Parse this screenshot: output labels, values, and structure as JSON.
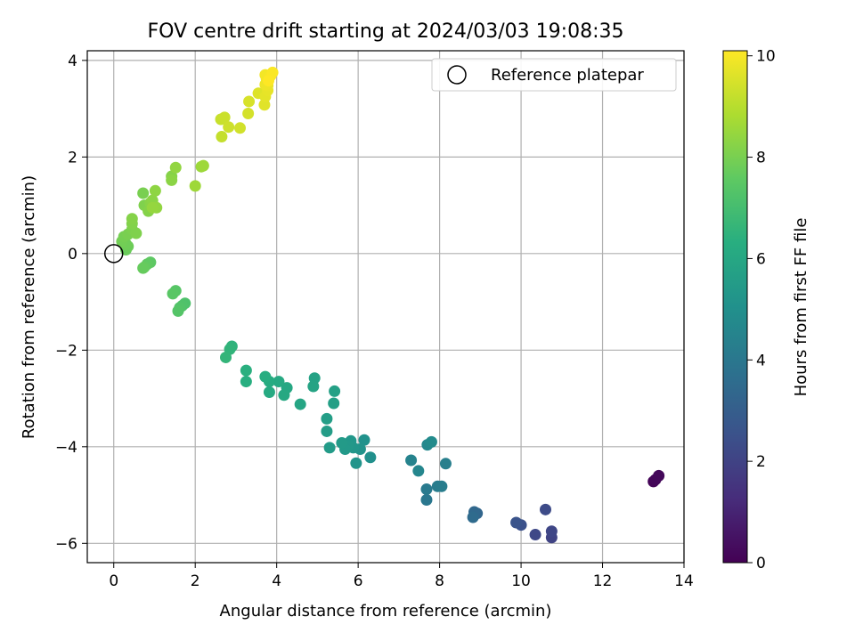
{
  "chart_data": {
    "type": "scatter",
    "title": "FOV centre drift starting at 2024/03/03 19:08:35",
    "xlabel": "Angular distance from reference (arcmin)",
    "ylabel": "Rotation from reference (arcmin)",
    "xlim": [
      -0.65,
      14.0
    ],
    "ylim": [
      -6.4,
      4.2
    ],
    "xticks": [
      0,
      2,
      4,
      6,
      8,
      10,
      12,
      14
    ],
    "yticks": [
      -6,
      -4,
      -2,
      0,
      2,
      4
    ],
    "grid": true,
    "legend": {
      "placement": "top-right",
      "entries": [
        "Reference platepar"
      ]
    },
    "reference_point": {
      "x": 0,
      "y": 0
    },
    "colorbar": {
      "label": "Hours from first FF file",
      "range": [
        0,
        10.1
      ],
      "ticks": [
        0,
        2,
        4,
        6,
        8,
        10
      ],
      "colormap": "viridis"
    },
    "colormap_stops": [
      "#440154",
      "#472d7b",
      "#3b528b",
      "#2c728e",
      "#21918c",
      "#28ae80",
      "#5ec962",
      "#addc30",
      "#fde725"
    ],
    "points": [
      {
        "x": 13.25,
        "y": -4.72,
        "c": 0.1
      },
      {
        "x": 13.3,
        "y": -4.68,
        "c": 0.15
      },
      {
        "x": 13.38,
        "y": -4.6,
        "c": 0.2
      },
      {
        "x": 10.75,
        "y": -5.88,
        "c": 2.0
      },
      {
        "x": 10.75,
        "y": -5.75,
        "c": 2.1
      },
      {
        "x": 10.35,
        "y": -5.82,
        "c": 2.2
      },
      {
        "x": 10.6,
        "y": -5.3,
        "c": 2.3
      },
      {
        "x": 10.0,
        "y": -5.62,
        "c": 2.5
      },
      {
        "x": 9.88,
        "y": -5.57,
        "c": 2.6
      },
      {
        "x": 8.92,
        "y": -5.38,
        "c": 3.3
      },
      {
        "x": 8.85,
        "y": -5.35,
        "c": 3.4
      },
      {
        "x": 8.82,
        "y": -5.46,
        "c": 3.5
      },
      {
        "x": 7.68,
        "y": -5.1,
        "c": 4.0
      },
      {
        "x": 7.68,
        "y": -4.88,
        "c": 4.1
      },
      {
        "x": 7.95,
        "y": -4.82,
        "c": 4.2
      },
      {
        "x": 8.05,
        "y": -4.82,
        "c": 4.25
      },
      {
        "x": 8.15,
        "y": -4.35,
        "c": 4.3
      },
      {
        "x": 7.3,
        "y": -4.28,
        "c": 4.5
      },
      {
        "x": 7.48,
        "y": -4.5,
        "c": 4.6
      },
      {
        "x": 7.7,
        "y": -3.96,
        "c": 4.7
      },
      {
        "x": 7.8,
        "y": -3.9,
        "c": 4.8
      },
      {
        "x": 6.3,
        "y": -4.22,
        "c": 5.0
      },
      {
        "x": 6.15,
        "y": -3.86,
        "c": 5.1
      },
      {
        "x": 6.05,
        "y": -4.05,
        "c": 5.15
      },
      {
        "x": 5.95,
        "y": -4.34,
        "c": 5.2
      },
      {
        "x": 5.88,
        "y": -4.02,
        "c": 5.25
      },
      {
        "x": 5.82,
        "y": -3.88,
        "c": 5.3
      },
      {
        "x": 5.75,
        "y": -3.98,
        "c": 5.35
      },
      {
        "x": 5.68,
        "y": -4.05,
        "c": 5.4
      },
      {
        "x": 5.6,
        "y": -3.92,
        "c": 5.45
      },
      {
        "x": 5.3,
        "y": -4.02,
        "c": 5.5
      },
      {
        "x": 5.23,
        "y": -3.68,
        "c": 5.55
      },
      {
        "x": 5.23,
        "y": -3.42,
        "c": 5.6
      },
      {
        "x": 5.4,
        "y": -3.1,
        "c": 5.65
      },
      {
        "x": 5.42,
        "y": -2.85,
        "c": 5.7
      },
      {
        "x": 4.93,
        "y": -2.58,
        "c": 5.8
      },
      {
        "x": 4.9,
        "y": -2.75,
        "c": 5.85
      },
      {
        "x": 4.58,
        "y": -3.12,
        "c": 5.9
      },
      {
        "x": 4.25,
        "y": -2.78,
        "c": 6.0
      },
      {
        "x": 4.18,
        "y": -2.93,
        "c": 6.05
      },
      {
        "x": 4.05,
        "y": -2.65,
        "c": 6.1
      },
      {
        "x": 3.82,
        "y": -2.87,
        "c": 6.15
      },
      {
        "x": 3.82,
        "y": -2.65,
        "c": 6.2
      },
      {
        "x": 3.72,
        "y": -2.55,
        "c": 6.25
      },
      {
        "x": 3.25,
        "y": -2.65,
        "c": 6.3
      },
      {
        "x": 3.25,
        "y": -2.42,
        "c": 6.35
      },
      {
        "x": 2.9,
        "y": -1.92,
        "c": 6.5
      },
      {
        "x": 2.85,
        "y": -1.98,
        "c": 6.55
      },
      {
        "x": 2.75,
        "y": -2.15,
        "c": 6.6
      },
      {
        "x": 1.75,
        "y": -1.03,
        "c": 7.2
      },
      {
        "x": 1.68,
        "y": -1.08,
        "c": 7.25
      },
      {
        "x": 1.62,
        "y": -1.12,
        "c": 7.3
      },
      {
        "x": 1.58,
        "y": -1.19,
        "c": 7.35
      },
      {
        "x": 1.52,
        "y": -0.77,
        "c": 7.4
      },
      {
        "x": 1.45,
        "y": -0.83,
        "c": 7.45
      },
      {
        "x": 0.9,
        "y": -0.18,
        "c": 7.55
      },
      {
        "x": 0.82,
        "y": -0.22,
        "c": 7.6
      },
      {
        "x": 0.75,
        "y": -0.28,
        "c": 7.65
      },
      {
        "x": 0.72,
        "y": -0.3,
        "c": 7.7
      },
      {
        "x": 0.3,
        "y": 0.08,
        "c": 7.75
      },
      {
        "x": 0.35,
        "y": 0.15,
        "c": 7.8
      },
      {
        "x": 0.3,
        "y": 0.2,
        "c": 7.85
      },
      {
        "x": 0.2,
        "y": 0.25,
        "c": 7.9
      },
      {
        "x": 0.25,
        "y": 0.35,
        "c": 7.95
      },
      {
        "x": 0.35,
        "y": 0.4,
        "c": 8.0
      },
      {
        "x": 0.45,
        "y": 0.5,
        "c": 8.05
      },
      {
        "x": 0.55,
        "y": 0.42,
        "c": 8.1
      },
      {
        "x": 0.45,
        "y": 0.62,
        "c": 8.15
      },
      {
        "x": 0.45,
        "y": 0.72,
        "c": 8.2
      },
      {
        "x": 0.72,
        "y": 1.25,
        "c": 8.0
      },
      {
        "x": 0.75,
        "y": 1.0,
        "c": 8.1
      },
      {
        "x": 0.85,
        "y": 0.88,
        "c": 8.2
      },
      {
        "x": 0.9,
        "y": 1.05,
        "c": 8.25
      },
      {
        "x": 0.95,
        "y": 1.1,
        "c": 8.3
      },
      {
        "x": 1.02,
        "y": 1.3,
        "c": 8.35
      },
      {
        "x": 1.05,
        "y": 0.95,
        "c": 8.4
      },
      {
        "x": 0.95,
        "y": 0.95,
        "c": 8.45
      },
      {
        "x": 1.42,
        "y": 1.6,
        "c": 8.2
      },
      {
        "x": 1.42,
        "y": 1.52,
        "c": 8.3
      },
      {
        "x": 1.52,
        "y": 1.78,
        "c": 8.4
      },
      {
        "x": 2.0,
        "y": 1.4,
        "c": 8.6
      },
      {
        "x": 2.15,
        "y": 1.8,
        "c": 8.55
      },
      {
        "x": 2.2,
        "y": 1.82,
        "c": 8.6
      },
      {
        "x": 2.65,
        "y": 2.42,
        "c": 9.2
      },
      {
        "x": 2.63,
        "y": 2.78,
        "c": 9.25
      },
      {
        "x": 2.72,
        "y": 2.82,
        "c": 9.3
      },
      {
        "x": 2.82,
        "y": 2.62,
        "c": 9.35
      },
      {
        "x": 3.1,
        "y": 2.6,
        "c": 9.4
      },
      {
        "x": 3.3,
        "y": 2.9,
        "c": 9.45
      },
      {
        "x": 3.32,
        "y": 3.15,
        "c": 9.5
      },
      {
        "x": 3.55,
        "y": 3.32,
        "c": 9.6
      },
      {
        "x": 3.7,
        "y": 3.08,
        "c": 9.65
      },
      {
        "x": 3.72,
        "y": 3.25,
        "c": 9.7
      },
      {
        "x": 3.78,
        "y": 3.38,
        "c": 9.75
      },
      {
        "x": 3.78,
        "y": 3.48,
        "c": 9.8
      },
      {
        "x": 3.72,
        "y": 3.5,
        "c": 9.85
      },
      {
        "x": 3.75,
        "y": 3.62,
        "c": 9.9
      },
      {
        "x": 3.72,
        "y": 3.7,
        "c": 9.95
      },
      {
        "x": 3.85,
        "y": 3.68,
        "c": 10.0
      },
      {
        "x": 3.9,
        "y": 3.75,
        "c": 10.05
      },
      {
        "x": 3.8,
        "y": 3.58,
        "c": 10.1
      }
    ]
  }
}
